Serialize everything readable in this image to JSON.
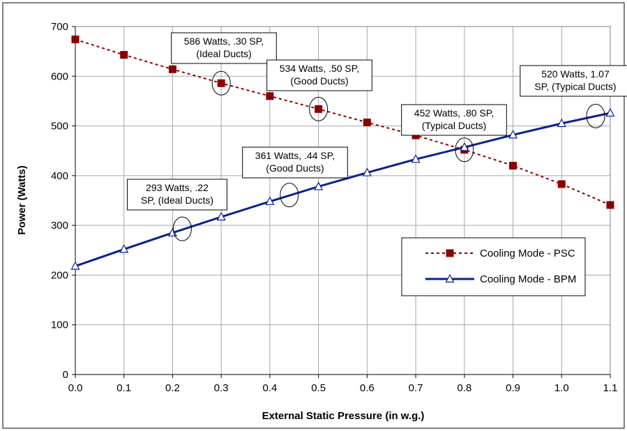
{
  "chart_data": {
    "type": "line",
    "xlabel": "External Static Pressure (in w.g.)",
    "ylabel": "Power (Watts)",
    "xlim": [
      0,
      1.1
    ],
    "ylim": [
      0,
      700
    ],
    "x_ticks": [
      "0.0",
      "0.1",
      "0.2",
      "0.3",
      "0.4",
      "0.5",
      "0.6",
      "0.7",
      "0.8",
      "0.9",
      "1.0",
      "1.1"
    ],
    "y_ticks": [
      "0",
      "100",
      "200",
      "300",
      "400",
      "500",
      "600",
      "700"
    ],
    "grid": true,
    "legend_placement": "bottom-right",
    "x": [
      0.0,
      0.1,
      0.2,
      0.3,
      0.4,
      0.5,
      0.6,
      0.7,
      0.8,
      0.9,
      1.0,
      1.1
    ],
    "series": [
      {
        "name": "Cooling Mode - PSC",
        "color": "#8b0000",
        "marker": "square",
        "line_style": "dashed",
        "values": [
          674,
          643,
          614,
          586,
          560,
          534,
          507,
          481,
          452,
          420,
          383,
          341
        ]
      },
      {
        "name": "Cooling Mode - BPM",
        "color": "#0a1f8f",
        "marker": "triangle",
        "line_style": "solid",
        "values": [
          218,
          252,
          285,
          317,
          348,
          378,
          406,
          433,
          457,
          482,
          505,
          526
        ]
      }
    ],
    "annotations": [
      {
        "lines": [
          "586 Watts, .30 SP,",
          "(Ideal Ducts)"
        ],
        "x": 0.3,
        "y": 586
      },
      {
        "lines": [
          "534 Watts, .50 SP,",
          "(Good Ducts)"
        ],
        "x": 0.5,
        "y": 534
      },
      {
        "lines": [
          "452 Watts, .80 SP,",
          "(Typical Ducts)"
        ],
        "x": 0.8,
        "y": 452
      },
      {
        "lines": [
          "520 Watts, 1.07",
          "SP, (Typical Ducts)"
        ],
        "x": 1.07,
        "y": 520
      },
      {
        "lines": [
          "361 Watts, .44 SP,",
          "(Good Ducts)"
        ],
        "x": 0.44,
        "y": 361
      },
      {
        "lines": [
          "293 Watts, .22",
          "SP, (Ideal Ducts)"
        ],
        "x": 0.22,
        "y": 293
      }
    ]
  }
}
